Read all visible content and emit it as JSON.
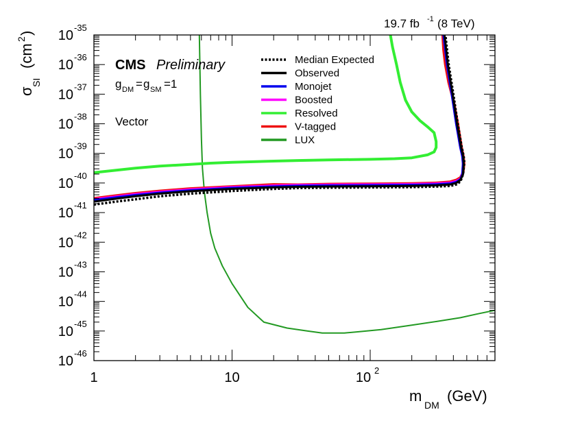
{
  "chart_data": {
    "type": "line",
    "lumi_label": "19.7 fb",
    "lumi_exp": "-1",
    "energy_label": "(8 TeV)",
    "cms_label": "CMS",
    "prelim_label": "Preliminary",
    "coupling": {
      "g1": "g",
      "g1_sub": "DM",
      "eq1": "=",
      "g2": "g",
      "g2_sub": "SM",
      "eq2": "=1"
    },
    "model_label": "Vector",
    "xlabel": {
      "main": "m",
      "sub": "DM",
      "unit": "(GeV)"
    },
    "ylabel": {
      "main": "σ",
      "sub": "SI",
      "unit_open": "(cm",
      "unit_exp": "2",
      "unit_close": ")"
    },
    "x_scale": "log",
    "y_scale": "log",
    "xlim": [
      1,
      800
    ],
    "ylim": [
      1e-46,
      1e-35
    ],
    "x_ticks": [
      {
        "value": 1,
        "base": "1",
        "exp": ""
      },
      {
        "value": 10,
        "base": "10",
        "exp": ""
      },
      {
        "value": 100,
        "base": "10",
        "exp": "2"
      }
    ],
    "y_ticks": [
      {
        "value": -46,
        "base": "10",
        "exp": "-46"
      },
      {
        "value": -45,
        "base": "10",
        "exp": "-45"
      },
      {
        "value": -44,
        "base": "10",
        "exp": "-44"
      },
      {
        "value": -43,
        "base": "10",
        "exp": "-43"
      },
      {
        "value": -42,
        "base": "10",
        "exp": "-42"
      },
      {
        "value": -41,
        "base": "10",
        "exp": "-41"
      },
      {
        "value": -40,
        "base": "10",
        "exp": "-40"
      },
      {
        "value": -39,
        "base": "10",
        "exp": "-39"
      },
      {
        "value": -38,
        "base": "10",
        "exp": "-38"
      },
      {
        "value": -37,
        "base": "10",
        "exp": "-37"
      },
      {
        "value": -36,
        "base": "10",
        "exp": "-36"
      },
      {
        "value": -35,
        "base": "10",
        "exp": "-35"
      }
    ],
    "legend_position": "top-center",
    "series": [
      {
        "name": "Median Expected",
        "color": "#000000",
        "dash": "dotted",
        "x": [
          1,
          1.5,
          2,
          3,
          5,
          10,
          20,
          30,
          50,
          100,
          200,
          300,
          380,
          420,
          450,
          470,
          480,
          475,
          460,
          430,
          400,
          370,
          350
        ],
        "y": [
          -40.73,
          -40.62,
          -40.55,
          -40.45,
          -40.36,
          -40.27,
          -40.2,
          -40.17,
          -40.16,
          -40.15,
          -40.14,
          -40.12,
          -40.1,
          -40.05,
          -39.95,
          -39.7,
          -39.3,
          -39.1,
          -38.8,
          -38.0,
          -37.0,
          -36.0,
          -35.0
        ]
      },
      {
        "name": "Observed",
        "color": "#000000",
        "dash": "solid",
        "x": [
          1,
          1.5,
          2,
          3,
          5,
          10,
          20,
          30,
          50,
          100,
          200,
          300,
          380,
          420,
          450,
          470,
          475,
          470,
          455,
          425,
          395,
          365,
          345
        ],
        "y": [
          -40.63,
          -40.52,
          -40.45,
          -40.36,
          -40.28,
          -40.2,
          -40.15,
          -40.13,
          -40.12,
          -40.11,
          -40.1,
          -40.08,
          -40.05,
          -40.0,
          -39.9,
          -39.7,
          -39.35,
          -39.1,
          -38.8,
          -38.0,
          -37.0,
          -36.0,
          -35.0
        ]
      },
      {
        "name": "Monojet",
        "color": "#0000ee",
        "dash": "solid",
        "x": [
          1,
          1.5,
          2,
          3,
          5,
          10,
          20,
          30,
          50,
          100,
          200,
          300,
          380,
          420,
          450,
          465,
          470,
          465,
          450,
          420,
          390,
          360,
          340
        ],
        "y": [
          -40.58,
          -40.48,
          -40.41,
          -40.33,
          -40.25,
          -40.17,
          -40.12,
          -40.1,
          -40.09,
          -40.08,
          -40.07,
          -40.05,
          -40.02,
          -39.97,
          -39.88,
          -39.7,
          -39.35,
          -39.1,
          -38.8,
          -38.0,
          -37.0,
          -36.0,
          -35.0
        ]
      },
      {
        "name": "Boosted",
        "color": "#ff00ff",
        "dash": "solid",
        "x": [
          1,
          1.5,
          2,
          3,
          5,
          10,
          20,
          30,
          50,
          100,
          200,
          300,
          380,
          420,
          450,
          465,
          470,
          465,
          450,
          420,
          390,
          360,
          340
        ],
        "y": [
          -40.55,
          -40.45,
          -40.38,
          -40.3,
          -40.22,
          -40.14,
          -40.09,
          -40.07,
          -40.06,
          -40.05,
          -40.04,
          -40.02,
          -39.99,
          -39.94,
          -39.86,
          -39.68,
          -39.35,
          -39.1,
          -38.8,
          -38.0,
          -37.0,
          -36.0,
          -35.0
        ]
      },
      {
        "name": "Resolved",
        "color": "#33ee33",
        "dash": "solid",
        "x": [
          1,
          2,
          3,
          5,
          7,
          10,
          20,
          30,
          50,
          100,
          150,
          200,
          260,
          290,
          300,
          300,
          290,
          260,
          230,
          200,
          180,
          165,
          155,
          145,
          140
        ],
        "y": [
          -39.65,
          -39.5,
          -39.43,
          -39.37,
          -39.33,
          -39.3,
          -39.26,
          -39.24,
          -39.22,
          -39.2,
          -39.18,
          -39.15,
          -39.05,
          -38.95,
          -38.8,
          -38.6,
          -38.3,
          -38.1,
          -37.9,
          -37.6,
          -37.2,
          -36.6,
          -36.0,
          -35.4,
          -35.0
        ]
      },
      {
        "name": "V-tagged",
        "color": "#ee1111",
        "dash": "solid",
        "x": [
          1,
          1.5,
          2,
          3,
          5,
          10,
          20,
          30,
          50,
          100,
          200,
          300,
          380,
          420,
          450,
          470,
          478,
          472,
          458,
          430,
          400,
          370,
          350,
          340,
          335
        ],
        "y": [
          -40.52,
          -40.42,
          -40.35,
          -40.27,
          -40.19,
          -40.12,
          -40.05,
          -40.06,
          -40.04,
          -40.03,
          -40.02,
          -40.0,
          -39.96,
          -39.9,
          -39.82,
          -39.65,
          -39.35,
          -39.1,
          -38.8,
          -38.0,
          -37.2,
          -36.6,
          -36.0,
          -35.5,
          -35.0
        ]
      },
      {
        "name": "LUX",
        "color": "#229922",
        "dash": "solid",
        "x": [
          5.8,
          5.9,
          6.0,
          6.1,
          6.3,
          6.6,
          7.0,
          7.5,
          8.5,
          10,
          13,
          17,
          25,
          35,
          45,
          65,
          80,
          120,
          200,
          300,
          450,
          600,
          800
        ],
        "y": [
          -35.0,
          -37.0,
          -38.5,
          -39.5,
          -40.3,
          -41.0,
          -41.7,
          -42.2,
          -42.8,
          -43.4,
          -44.2,
          -44.7,
          -44.9,
          -45.0,
          -45.07,
          -45.07,
          -45.03,
          -44.95,
          -44.8,
          -44.68,
          -44.55,
          -44.42,
          -44.3
        ]
      }
    ]
  }
}
